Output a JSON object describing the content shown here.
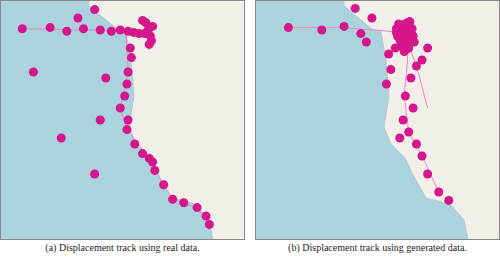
{
  "chart_data": [
    {
      "type": "scatter",
      "title": "(a) Displacement track using real data.",
      "xlim": [
        -136,
        -114
      ],
      "ylim": [
        31,
        51
      ],
      "tick_labels": false,
      "grid": false,
      "series": [
        {
          "type": "line",
          "line_style": "solid",
          "color": "#e58cc4",
          "x": [
            -134,
            -128,
            -124.7,
            -123,
            -122.4
          ],
          "y": [
            48.6,
            48.5,
            48.4,
            48.2,
            47.6
          ]
        },
        {
          "type": "line",
          "line_style": "solid",
          "color": "#e58cc4",
          "x": [
            -122.7,
            -124.7,
            -124.5,
            -125.2,
            -124.6,
            -122.6
          ],
          "y": [
            48.4,
            48.3,
            45,
            42,
            40.2,
            37.8
          ]
        },
        {
          "type": "line",
          "line_style": "solid",
          "color": "#e58cc4",
          "x": [
            -122.6,
            -121.3,
            -120.5,
            -118.3,
            -117.2
          ],
          "y": [
            37.8,
            35.6,
            34.4,
            33.7,
            32.3
          ]
        },
        {
          "type": "scatter",
          "marker": "circle",
          "color": "#d6168b",
          "x": [
            -124.5,
            -124,
            -123.5,
            -123,
            -122.8,
            -125.2,
            -126,
            -127,
            -128.5,
            -130,
            -131.5,
            -134,
            -129,
            -127.5,
            -122.4,
            -122.5,
            -122.7,
            -122.3,
            -122.9,
            -123.2,
            -122.6,
            -124.3,
            -124.2,
            -124.5,
            -124.6,
            -124.8,
            -125.2,
            -124.5,
            -124.6,
            -123.9,
            -123.2,
            -122.6,
            -122.3,
            -122.1,
            -121.3,
            -120.5,
            -119.5,
            -118.3,
            -117.5,
            -117.2,
            -130.5,
            -127.5,
            -133,
            -126.5,
            -127
          ],
          "y": [
            48.4,
            48.3,
            48.2,
            48.2,
            48.3,
            48.5,
            48.4,
            48.5,
            48.6,
            48.4,
            48.7,
            48.6,
            49.5,
            50.2,
            47.6,
            48.0,
            48.5,
            48.8,
            49.1,
            49.3,
            47.3,
            47.0,
            46.2,
            45.0,
            44.0,
            43.0,
            42.0,
            41.0,
            40.2,
            39.0,
            38.2,
            37.8,
            37.5,
            36.8,
            35.6,
            34.4,
            34.1,
            33.7,
            33.0,
            32.3,
            39.5,
            36.5,
            45,
            44.5,
            41
          ]
        }
      ]
    },
    {
      "type": "scatter",
      "title": "(b) Displacement track using generated data.",
      "xlim": [
        -136,
        -114
      ],
      "ylim": [
        31,
        51
      ],
      "tick_labels": false,
      "grid": false,
      "series": [
        {
          "type": "line",
          "line_style": "solid",
          "color": "#e58cc4",
          "x": [
            -122.5,
            -122.3,
            -122.6,
            -122.2,
            -121,
            -119.5
          ],
          "y": [
            48.5,
            46,
            43,
            40,
            38,
            35
          ]
        },
        {
          "type": "line",
          "line_style": "solid",
          "color": "#e58cc4",
          "x": [
            -122.8,
            -128,
            -133
          ],
          "y": [
            48.3,
            48.7,
            48.7
          ]
        },
        {
          "type": "line",
          "line_style": "solid",
          "color": "#e58cc4",
          "x": [
            -122.3,
            -121.5,
            -120.5
          ],
          "y": [
            47.5,
            45.5,
            42
          ]
        },
        {
          "type": "scatter",
          "marker": "circle",
          "color": "#d6168b",
          "x": [
            -122.1,
            -122.3,
            -122.5,
            -122.7,
            -122.9,
            -123.1,
            -123.3,
            -122.2,
            -122.4,
            -122.6,
            -122.8,
            -123.0,
            -123.2,
            -122.0,
            -122.3,
            -122.5,
            -122.7,
            -122.9,
            -122.2,
            -122.4,
            -122.6,
            -122.8,
            -123.4,
            -121.8,
            -121.9,
            -122.1,
            -122.3,
            -122.5,
            -122.7,
            -122.9,
            -123.1,
            -122.4,
            -122.6,
            -122.2,
            -123.0,
            -121.7,
            -122.0,
            -122.8,
            -123.3,
            -122.5,
            -133,
            -130,
            -128,
            -126.5,
            -125.5,
            -127,
            -126,
            -120.5,
            -121,
            -121.5,
            -122,
            -122.5,
            -121.8,
            -122.7,
            -122.2,
            -121.5,
            -121,
            -120.5,
            -119.5,
            -118.6,
            -124,
            -123.8,
            -124.2,
            -123
          ],
          "y": [
            49.2,
            49.1,
            49.0,
            48.9,
            48.8,
            48.7,
            48.6,
            48.5,
            48.4,
            48.3,
            48.2,
            48.1,
            48.0,
            47.9,
            47.8,
            47.7,
            47.6,
            47.5,
            47.4,
            47.3,
            47.2,
            47.1,
            47.0,
            48.0,
            48.6,
            48.8,
            48.2,
            47.9,
            47.4,
            48.5,
            49.0,
            46.9,
            46.7,
            47.0,
            47.7,
            47.5,
            48.3,
            48.9,
            48.3,
            48.7,
            48.7,
            48.5,
            48.8,
            48.2,
            49.5,
            50.3,
            47.5,
            47,
            46,
            45.5,
            44.5,
            43,
            42,
            41,
            40,
            39,
            38,
            36.5,
            35,
            34.3,
            46.5,
            45.2,
            44,
            39.5
          ]
        }
      ]
    }
  ]
}
